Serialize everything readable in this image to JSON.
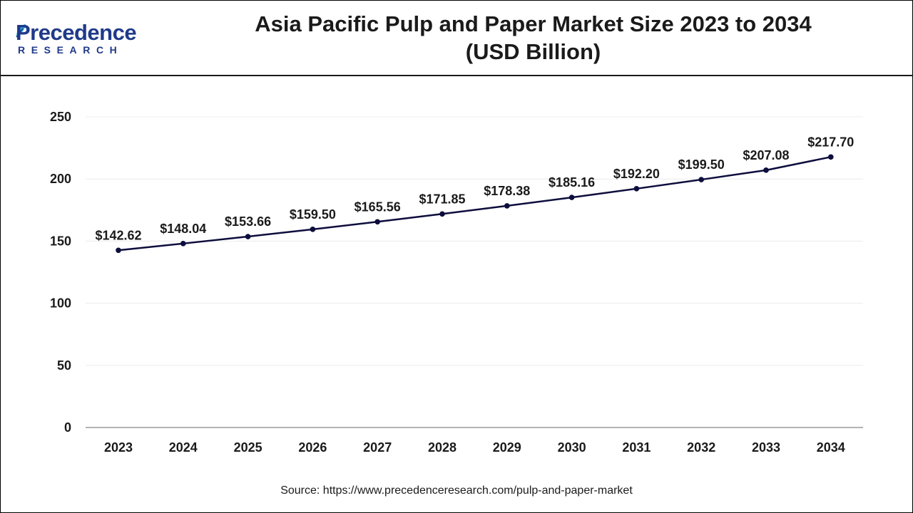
{
  "header": {
    "logo_word": "Precedence",
    "logo_sub": "RESEARCH",
    "title_line1": "Asia Pacific Pulp and Paper Market Size 2023 to 2034",
    "title_line2": "(USD Billion)"
  },
  "source": "Source: https://www.precedenceresearch.com/pulp-and-paper-market",
  "colors": {
    "line": "#0d0d3d",
    "marker": "#0d0d3d",
    "grid": "#ececec",
    "axis": "#9a9a9a",
    "brand": "#1f3a8a",
    "leaf": "#2aa8d8"
  },
  "chart_data": {
    "type": "line",
    "title": "Asia Pacific Pulp and Paper Market Size 2023 to 2034 (USD Billion)",
    "xlabel": "",
    "ylabel": "",
    "categories": [
      "2023",
      "2024",
      "2025",
      "2026",
      "2027",
      "2028",
      "2029",
      "2030",
      "2031",
      "2032",
      "2033",
      "2034"
    ],
    "series": [
      {
        "values": [
          142.62,
          148.04,
          153.66,
          159.5,
          165.56,
          171.85,
          178.38,
          185.16,
          192.2,
          199.5,
          207.08,
          217.7
        ],
        "labels": [
          "$142.62",
          "$148.04",
          "$153.66",
          "$159.50",
          "$165.56",
          "$171.85",
          "$178.38",
          "$185.16",
          "$192.20",
          "$199.50",
          "$207.08",
          "$217.70"
        ]
      }
    ],
    "ylim": [
      0,
      250
    ],
    "yticks": [
      0,
      50,
      100,
      150,
      200,
      250
    ],
    "grid": true,
    "legend": "none"
  }
}
